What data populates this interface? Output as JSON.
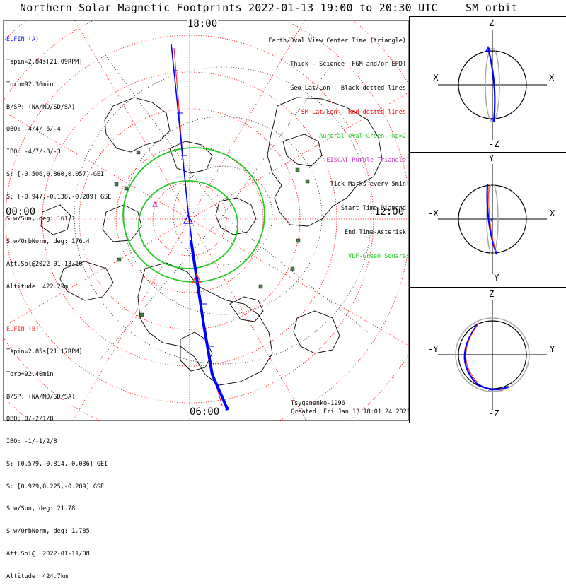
{
  "title": "Northern Solar Magnetic Footprints 2022-01-13 19:00 to 20:30 UTC",
  "orbit_title": "SM orbit",
  "time_labels": {
    "top": "18:00",
    "left": "00:00",
    "right": "12:00",
    "bottom": "06:00"
  },
  "elfin_a": {
    "name": "ELFIN (A)",
    "lines": [
      "Tspin=2.84s[21.09RPM]",
      "Torb=92.36min",
      "B/SP: (NA/ND/SD/SA)",
      "OBO: -4/4/-6/-4",
      "IBO: -4/7/-8/-3",
      "S: [-0.506,0.860,0.057]-GEI",
      "S: [-0.947,-0.138,-0.289] GSE",
      "S w/Sun, deg: 161.1",
      "S w/OrbNorm, deg: 176.4",
      "Att.Sol@2022-01-13/10",
      "Altitude: 422.2km"
    ]
  },
  "elfin_b": {
    "name": "ELFIN (B)",
    "lines": [
      "Tspin=2.85s[21.17RPM]",
      "Torb=92.40min",
      "B/SP: (NA/ND/SD/SA)",
      "OBO: 0/-2/1/8",
      "IBO: -1/-1/2/8",
      "S: [0.579,-0.814,-0.036] GEI",
      "S: [0.929,0.225,-0.289] GSE",
      "S w/Sun, deg: 21.78",
      "S w/OrbNorm, deg: 1.785",
      "Att.Sol@: 2022-01-11/08",
      "Altitude: 424.7km"
    ]
  },
  "legend": [
    {
      "text": "Earth/Oval View Center Time (triangle)",
      "color": "#000000"
    },
    {
      "text": "Thick - Science (FGM and/or EPD)",
      "color": "#000000"
    },
    {
      "text": "Geo Lat/Lon - Black dotted lines",
      "color": "#000000"
    },
    {
      "text": "SM Lat/Lon - Red dotted lines",
      "color": "#ff0000"
    },
    {
      "text": "Auroral Oval-Green, kp=2",
      "color": "#22cc22"
    },
    {
      "text": "EISCAT-Purple Triangle",
      "color": "#c040c0"
    },
    {
      "text": "Tick Marks every 5min",
      "color": "#000000"
    },
    {
      "text": "Start Time-Diamond",
      "color": "#000000"
    },
    {
      "text": "End Time-Asterisk",
      "color": "#000000"
    },
    {
      "text": "VLF-Green Square",
      "color": "#22cc22"
    }
  ],
  "credit": {
    "author": "Tsyganenko-1996",
    "created": "Created: Fri Jan 13 18:01:24 2023"
  },
  "orbit_panels": [
    {
      "top": "Z",
      "bottom": "-Z",
      "left": "-X",
      "right": "X"
    },
    {
      "top": "Y",
      "bottom": "-Y",
      "left": "-X",
      "right": "X"
    },
    {
      "top": "Z",
      "bottom": "-Z",
      "left": "-Y",
      "right": "Y"
    }
  ],
  "colors": {
    "elfin_a": "#0000ff",
    "elfin_b": "#ff3030",
    "sm_grid": "#ff0000",
    "geo_grid": "#000000",
    "oval": "#22cc22",
    "vlf": "#448844",
    "eiscat": "#c040c0"
  }
}
